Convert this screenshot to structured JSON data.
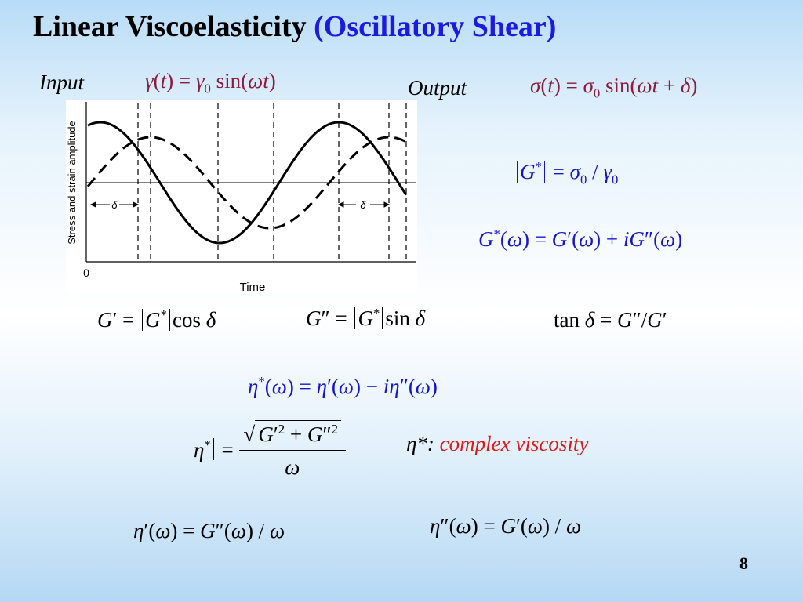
{
  "slide": {
    "title_main": "Linear Viscoelasticity",
    "title_sub": "(Oscillatory Shear)",
    "input_label": "Input",
    "output_label": "Output",
    "page_number": "8"
  },
  "equations": {
    "gamma_t": "γ(t) = γ₀ sin(ωt)",
    "sigma_t": "σ(t) = σ₀ sin(ωt + δ)",
    "modulus_magnitude": "|G*| = σ₀ / γ₀",
    "complex_modulus": "G*(ω) = G′(ω) + iG″(ω)",
    "storage_modulus": "G′ = |G*| cos δ",
    "loss_modulus": "G″ = |G*| sin δ",
    "tan_delta": "tan δ = G″/G′",
    "complex_viscosity": "η*(ω) = η′(ω) − iη″(ω)",
    "viscosity_magnitude": "|η*| = √(G′² + G″²) / ω",
    "eta_prime": "η′(ω) = G″(ω) / ω",
    "eta_double_prime": "η″(ω) = G′(ω) / ω"
  },
  "note": {
    "symbol": "η*:",
    "text": "complex viscosity"
  },
  "figure": {
    "ylabel": "Stress and strain amplitude",
    "xlabel": "Time",
    "origin_label": "0",
    "delta_label": "δ"
  }
}
